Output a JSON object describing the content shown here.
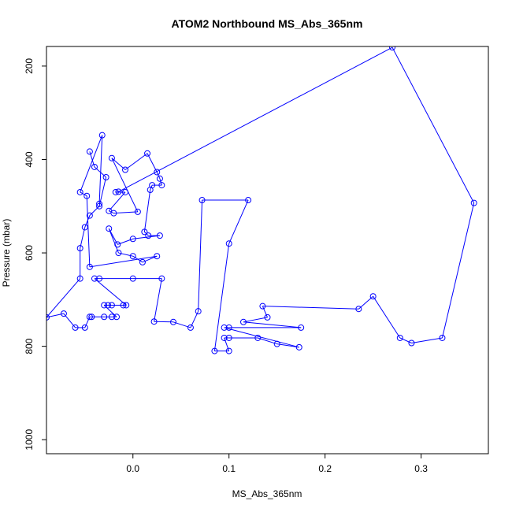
{
  "chart_data": {
    "type": "line",
    "title": "ATOM2 Northbound MS_Abs_365nm",
    "xlabel": "MS_Abs_365nm",
    "ylabel": "Pressure (mbar)",
    "xlim": [
      -0.09,
      0.37
    ],
    "ylim": [
      1030,
      158
    ],
    "y_reversed": true,
    "xticks": [
      0.0,
      0.1,
      0.2,
      0.3
    ],
    "xtick_labels": [
      "0.0",
      "0.1",
      "0.2",
      "0.3"
    ],
    "yticks": [
      200,
      400,
      600,
      800,
      1000
    ],
    "ytick_labels": [
      "200",
      "400",
      "600",
      "800",
      "1000"
    ],
    "grid": false,
    "legend": "none",
    "series": [
      {
        "color": "#0000ff",
        "marker": "open-circle",
        "points": [
          {
            "x": -0.045,
            "y": 383
          },
          {
            "x": -0.04,
            "y": 416
          },
          {
            "x": -0.028,
            "y": 438
          },
          {
            "x": -0.035,
            "y": 500
          },
          {
            "x": -0.045,
            "y": 520
          },
          {
            "x": -0.05,
            "y": 545
          },
          {
            "x": -0.055,
            "y": 590
          },
          {
            "x": -0.055,
            "y": 655
          },
          {
            "x": -0.09,
            "y": 738
          },
          {
            "x": -0.072,
            "y": 730
          },
          {
            "x": -0.06,
            "y": 760
          },
          {
            "x": -0.05,
            "y": 760
          },
          {
            "x": -0.045,
            "y": 737
          },
          {
            "x": -0.043,
            "y": 737
          },
          {
            "x": -0.03,
            "y": 737
          },
          {
            "x": -0.022,
            "y": 737
          },
          {
            "x": -0.017,
            "y": 737
          },
          {
            "x": -0.03,
            "y": 712
          },
          {
            "x": -0.026,
            "y": 712
          },
          {
            "x": -0.022,
            "y": 712
          },
          {
            "x": -0.01,
            "y": 712
          },
          {
            "x": -0.007,
            "y": 712
          },
          {
            "x": -0.04,
            "y": 655
          },
          {
            "x": -0.035,
            "y": 655
          },
          {
            "x": 0.0,
            "y": 655
          },
          {
            "x": 0.03,
            "y": 655
          },
          {
            "x": 0.022,
            "y": 747
          },
          {
            "x": 0.042,
            "y": 748
          },
          {
            "x": 0.06,
            "y": 760
          },
          {
            "x": 0.068,
            "y": 725
          },
          {
            "x": 0.072,
            "y": 487
          },
          {
            "x": 0.12,
            "y": 487
          },
          {
            "x": 0.1,
            "y": 580
          },
          {
            "x": 0.085,
            "y": 810
          },
          {
            "x": 0.1,
            "y": 810
          },
          {
            "x": 0.095,
            "y": 782
          },
          {
            "x": 0.1,
            "y": 782
          },
          {
            "x": 0.13,
            "y": 782
          },
          {
            "x": 0.15,
            "y": 795
          },
          {
            "x": 0.173,
            "y": 802
          },
          {
            "x": 0.095,
            "y": 760
          },
          {
            "x": 0.1,
            "y": 760
          },
          {
            "x": 0.175,
            "y": 760
          },
          {
            "x": 0.115,
            "y": 748
          },
          {
            "x": 0.14,
            "y": 738
          },
          {
            "x": 0.135,
            "y": 714
          },
          {
            "x": 0.235,
            "y": 720
          },
          {
            "x": 0.25,
            "y": 693
          },
          {
            "x": 0.278,
            "y": 782
          },
          {
            "x": 0.29,
            "y": 793
          },
          {
            "x": 0.322,
            "y": 782
          },
          {
            "x": 0.355,
            "y": 493
          },
          {
            "x": 0.27,
            "y": 160
          },
          {
            "x": -0.015,
            "y": 469
          },
          {
            "x": -0.018,
            "y": 470
          },
          {
            "x": -0.008,
            "y": 470
          },
          {
            "x": -0.025,
            "y": 510
          },
          {
            "x": -0.02,
            "y": 515
          },
          {
            "x": 0.005,
            "y": 512
          },
          {
            "x": -0.022,
            "y": 397
          },
          {
            "x": -0.008,
            "y": 422
          },
          {
            "x": 0.015,
            "y": 387
          },
          {
            "x": 0.025,
            "y": 427
          },
          {
            "x": 0.028,
            "y": 441
          },
          {
            "x": 0.03,
            "y": 455
          },
          {
            "x": 0.02,
            "y": 455
          },
          {
            "x": 0.018,
            "y": 465
          },
          {
            "x": 0.012,
            "y": 555
          },
          {
            "x": 0.016,
            "y": 563
          },
          {
            "x": 0.028,
            "y": 563
          },
          {
            "x": 0.0,
            "y": 570
          },
          {
            "x": -0.016,
            "y": 582
          },
          {
            "x": -0.025,
            "y": 548
          },
          {
            "x": -0.015,
            "y": 600
          },
          {
            "x": 0.0,
            "y": 607
          },
          {
            "x": 0.01,
            "y": 620
          },
          {
            "x": 0.025,
            "y": 607
          },
          {
            "x": -0.045,
            "y": 630
          },
          {
            "x": -0.048,
            "y": 478
          },
          {
            "x": -0.055,
            "y": 470
          },
          {
            "x": -0.032,
            "y": 348
          },
          {
            "x": -0.035,
            "y": 495
          }
        ]
      }
    ]
  }
}
